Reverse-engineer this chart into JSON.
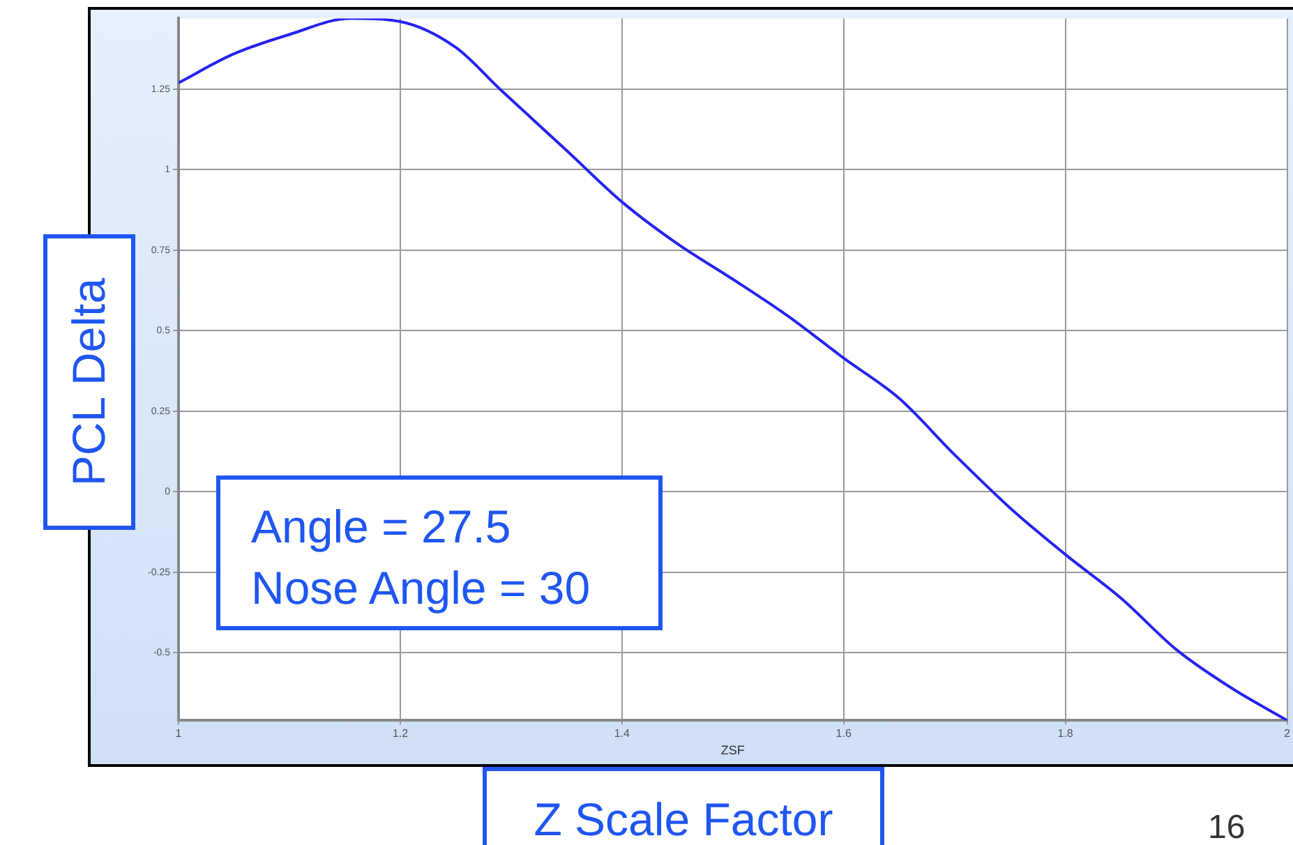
{
  "chart_data": {
    "type": "line",
    "xlabel": "ZSF",
    "ylabel": "PCL Delta",
    "annotations": [
      "Angle = 27.5",
      "Nose Angle = 30",
      "Z Scale Factor",
      "16"
    ],
    "x": [
      1,
      1.05,
      1.1,
      1.155,
      1.2,
      1.25,
      1.29,
      1.35,
      1.4,
      1.45,
      1.5,
      1.55,
      1.6,
      1.65,
      1.7,
      1.75,
      1.8,
      1.85,
      1.9,
      1.95,
      2
    ],
    "series": [
      {
        "color": "#2323f0",
        "values": [
          1.27,
          1.36,
          1.42,
          1.47,
          1.46,
          1.38,
          1.25,
          1.06,
          0.9,
          0.77,
          0.66,
          0.545,
          0.415,
          0.29,
          0.115,
          -0.05,
          -0.195,
          -0.33,
          -0.49,
          -0.61,
          -0.71
        ]
      }
    ],
    "xlim": [
      1,
      2
    ],
    "xticks": [
      1,
      1.2,
      1.4,
      1.6,
      1.8,
      2
    ],
    "ylim": [
      -0.71,
      1.47
    ],
    "yticks": [
      -0.5,
      -0.25,
      0,
      0.25,
      0.5,
      0.75,
      1,
      1.25
    ],
    "grid": true,
    "legend": false,
    "marker": "none",
    "line_style": "solid"
  }
}
